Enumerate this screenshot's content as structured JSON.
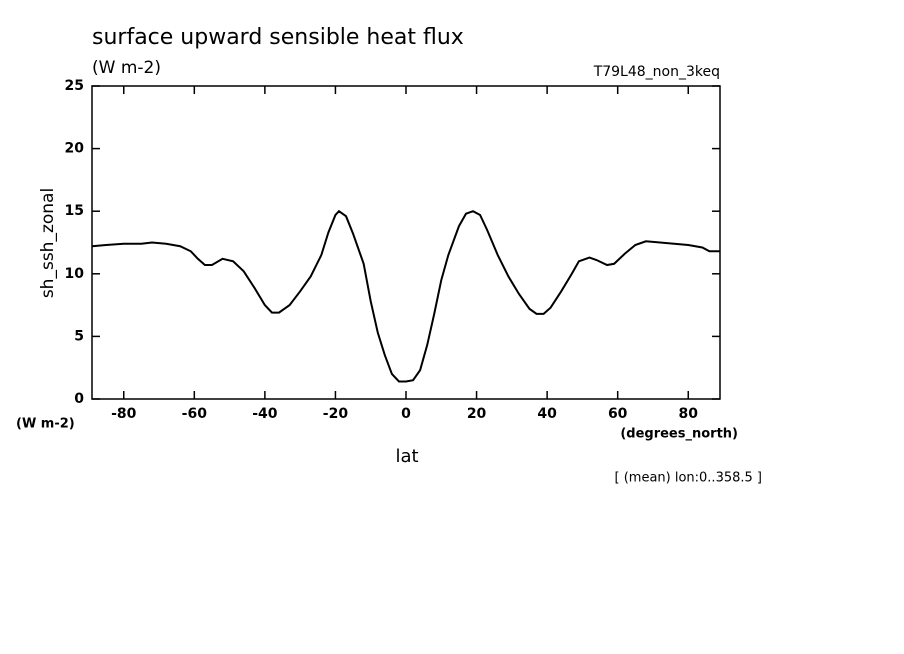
{
  "chart_data": {
    "type": "line",
    "title": "surface upward sensible heat flux",
    "subtitle": "(W m-2)",
    "experiment": "T79L48_non_3keq",
    "y_label": "sh_ssh_zonal",
    "y_unit": "(W m-2)",
    "x_label": "lat",
    "x_unit": "(degrees_north)",
    "annotation": "[ (mean) lon:0..358.5 ]",
    "xlim": [
      -89,
      89
    ],
    "ylim": [
      0,
      25
    ],
    "xticks": [
      -80,
      -60,
      -40,
      -20,
      0,
      20,
      40,
      60,
      80
    ],
    "yticks": [
      0,
      5,
      10,
      15,
      20,
      25
    ],
    "x": [
      -89,
      -85,
      -80,
      -75,
      -72,
      -68,
      -64,
      -61,
      -59,
      -57,
      -55,
      -52,
      -49,
      -46,
      -43,
      -40,
      -38,
      -36,
      -33,
      -30,
      -27,
      -24,
      -22,
      -20,
      -19,
      -17,
      -15,
      -12,
      -10,
      -8,
      -6,
      -4,
      -2,
      0,
      2,
      4,
      6,
      8,
      10,
      12,
      15,
      17,
      19,
      21,
      23,
      26,
      29,
      32,
      35,
      37,
      39,
      41,
      44,
      47,
      49,
      52,
      54,
      57,
      59,
      62,
      65,
      68,
      72,
      76,
      80,
      84,
      86,
      89
    ],
    "series": [
      {
        "name": "sh_ssh_zonal",
        "color": "#000000",
        "values": [
          12.2,
          12.3,
          12.4,
          12.4,
          12.5,
          12.4,
          12.2,
          11.8,
          11.2,
          10.7,
          10.7,
          11.2,
          11.0,
          10.2,
          8.9,
          7.5,
          6.9,
          6.9,
          7.5,
          8.6,
          9.8,
          11.5,
          13.3,
          14.7,
          15.0,
          14.6,
          13.2,
          10.8,
          7.8,
          5.3,
          3.5,
          2.0,
          1.4,
          1.4,
          1.5,
          2.3,
          4.3,
          6.8,
          9.5,
          11.5,
          13.8,
          14.8,
          15.0,
          14.7,
          13.5,
          11.5,
          9.8,
          8.4,
          7.2,
          6.8,
          6.8,
          7.3,
          8.6,
          10.0,
          11.0,
          11.3,
          11.1,
          10.7,
          10.8,
          11.6,
          12.3,
          12.6,
          12.5,
          12.4,
          12.3,
          12.1,
          11.8,
          11.8
        ]
      }
    ]
  }
}
